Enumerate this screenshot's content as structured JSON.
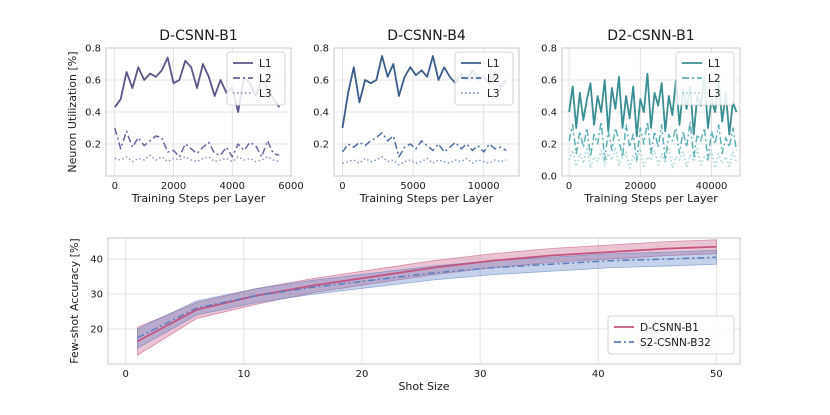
{
  "chart_data": [
    {
      "type": "line",
      "title": "D-CSNN-B1",
      "xlabel": "Training Steps per Layer",
      "ylabel": "Neuron Utilization [%]",
      "xlim": [
        -300,
        6000
      ],
      "ylim": [
        0.0,
        0.8
      ],
      "xticks": [
        0,
        2000,
        4000,
        6000
      ],
      "xtick_labels": [
        "0",
        "2000",
        "4000",
        "6000"
      ],
      "yticks": [
        0.2,
        0.4,
        0.6,
        0.8
      ],
      "ytick_labels": [
        "0.2",
        "0.4",
        "0.6",
        "0.8"
      ],
      "legend": "top-right",
      "series": [
        {
          "name": "L1",
          "style": "solid",
          "color": "#5b5589",
          "x": [
            0,
            200,
            400,
            600,
            800,
            1000,
            1200,
            1400,
            1600,
            1800,
            2000,
            2200,
            2400,
            2600,
            2800,
            3000,
            3200,
            3400,
            3600,
            3800,
            4000,
            4200,
            4400,
            4600,
            4800,
            5000,
            5200,
            5400,
            5600
          ],
          "values": [
            0.43,
            0.48,
            0.65,
            0.55,
            0.68,
            0.6,
            0.64,
            0.62,
            0.66,
            0.74,
            0.58,
            0.6,
            0.72,
            0.68,
            0.55,
            0.7,
            0.62,
            0.5,
            0.6,
            0.52,
            0.55,
            0.4,
            0.62,
            0.58,
            0.5,
            0.6,
            0.55,
            0.48,
            0.43
          ]
        },
        {
          "name": "L2",
          "style": "dashdot",
          "color": "#6a63a0",
          "x": [
            0,
            200,
            400,
            600,
            800,
            1000,
            1200,
            1400,
            1600,
            1800,
            2000,
            2200,
            2400,
            2600,
            2800,
            3000,
            3200,
            3400,
            3600,
            3800,
            4000,
            4200,
            4400,
            4600,
            4800,
            5000,
            5200,
            5400,
            5600
          ],
          "values": [
            0.3,
            0.17,
            0.28,
            0.18,
            0.24,
            0.19,
            0.22,
            0.25,
            0.24,
            0.15,
            0.16,
            0.12,
            0.2,
            0.17,
            0.14,
            0.18,
            0.21,
            0.14,
            0.13,
            0.18,
            0.12,
            0.2,
            0.16,
            0.21,
            0.19,
            0.12,
            0.22,
            0.14,
            0.13
          ]
        },
        {
          "name": "L3",
          "style": "dotted",
          "color": "#9590c2",
          "x": [
            0,
            200,
            400,
            600,
            800,
            1000,
            1200,
            1400,
            1600,
            1800,
            2000,
            2200,
            2400,
            2600,
            2800,
            3000,
            3200,
            3400,
            3600,
            3800,
            4000,
            4200,
            4400,
            4600,
            4800,
            5000,
            5200,
            5400,
            5600
          ],
          "values": [
            0.11,
            0.1,
            0.12,
            0.09,
            0.11,
            0.1,
            0.13,
            0.1,
            0.12,
            0.09,
            0.11,
            0.1,
            0.12,
            0.1,
            0.09,
            0.11,
            0.12,
            0.09,
            0.1,
            0.11,
            0.09,
            0.12,
            0.1,
            0.11,
            0.09,
            0.1,
            0.12,
            0.1,
            0.09
          ]
        }
      ]
    },
    {
      "type": "line",
      "title": "D-CSNN-B4",
      "xlabel": "Training Steps per Layer",
      "ylabel": "",
      "xlim": [
        -600,
        12500
      ],
      "ylim": [
        0.0,
        0.8
      ],
      "xticks": [
        0,
        5000,
        10000
      ],
      "xtick_labels": [
        "0",
        "5000",
        "10000"
      ],
      "yticks": [
        0.2,
        0.4,
        0.6,
        0.8
      ],
      "ytick_labels": [
        "0.2",
        "0.4",
        "0.6",
        "0.8"
      ],
      "legend": "top-right",
      "series": [
        {
          "name": "L1",
          "style": "solid",
          "color": "#3c5d8c",
          "x": [
            0,
            400,
            800,
            1200,
            1600,
            2000,
            2400,
            2800,
            3200,
            3600,
            4000,
            4400,
            4800,
            5200,
            5600,
            6000,
            6400,
            6800,
            7200,
            7600,
            8000,
            8400,
            8800,
            9200,
            9600,
            10000,
            10400,
            10800,
            11200,
            11600
          ],
          "values": [
            0.3,
            0.52,
            0.68,
            0.46,
            0.6,
            0.58,
            0.6,
            0.75,
            0.62,
            0.7,
            0.5,
            0.62,
            0.68,
            0.63,
            0.66,
            0.62,
            0.75,
            0.6,
            0.68,
            0.62,
            0.58,
            0.64,
            0.6,
            0.66,
            0.6,
            0.62,
            0.58,
            0.65,
            0.55,
            0.6
          ]
        },
        {
          "name": "L2",
          "style": "dashdot",
          "color": "#4b6d9e",
          "x": [
            0,
            400,
            800,
            1200,
            1600,
            2000,
            2400,
            2800,
            3200,
            3600,
            4000,
            4400,
            4800,
            5200,
            5600,
            6000,
            6400,
            6800,
            7200,
            7600,
            8000,
            8400,
            8800,
            9200,
            9600,
            10000,
            10400,
            10800,
            11200,
            11600
          ],
          "values": [
            0.15,
            0.2,
            0.18,
            0.21,
            0.19,
            0.22,
            0.24,
            0.27,
            0.22,
            0.25,
            0.12,
            0.18,
            0.2,
            0.17,
            0.22,
            0.19,
            0.16,
            0.2,
            0.15,
            0.18,
            0.21,
            0.17,
            0.2,
            0.16,
            0.19,
            0.15,
            0.2,
            0.17,
            0.18,
            0.16
          ]
        },
        {
          "name": "L3",
          "style": "dotted",
          "color": "#7a97c2",
          "x": [
            0,
            400,
            800,
            1200,
            1600,
            2000,
            2400,
            2800,
            3200,
            3600,
            4000,
            4400,
            4800,
            5200,
            5600,
            6000,
            6400,
            6800,
            7200,
            7600,
            8000,
            8400,
            8800,
            9200,
            9600,
            10000,
            10400,
            10800,
            11200,
            11600
          ],
          "values": [
            0.08,
            0.09,
            0.1,
            0.08,
            0.11,
            0.09,
            0.1,
            0.12,
            0.09,
            0.1,
            0.07,
            0.09,
            0.1,
            0.08,
            0.09,
            0.11,
            0.08,
            0.1,
            0.09,
            0.08,
            0.1,
            0.09,
            0.11,
            0.08,
            0.1,
            0.09,
            0.08,
            0.1,
            0.09,
            0.1
          ]
        }
      ]
    },
    {
      "type": "line",
      "title": "D2-CSNN-B1",
      "xlabel": "Training Steps per Layer",
      "ylabel": "",
      "xlim": [
        -2000,
        48000
      ],
      "ylim": [
        0.0,
        0.8
      ],
      "xticks": [
        0,
        20000,
        40000
      ],
      "xtick_labels": [
        "0",
        "20000",
        "40000"
      ],
      "yticks": [
        0.0,
        0.2,
        0.4,
        0.6,
        0.8
      ],
      "ytick_labels": [
        "0.0",
        "0.2",
        "0.4",
        "0.6",
        "0.8"
      ],
      "legend": "top-right",
      "series": [
        {
          "name": "L1",
          "style": "solid",
          "color": "#3a8f93",
          "x": [
            0,
            1000,
            2000,
            3000,
            4000,
            5000,
            6000,
            7000,
            8000,
            9000,
            10000,
            11000,
            12000,
            13000,
            14000,
            15000,
            16000,
            17000,
            18000,
            19000,
            20000,
            21000,
            22000,
            23000,
            24000,
            25000,
            26000,
            27000,
            28000,
            29000,
            30000,
            31000,
            32000,
            33000,
            34000,
            35000,
            36000,
            37000,
            38000,
            39000,
            40000,
            41000,
            42000,
            43000,
            44000,
            45000,
            46000,
            47000
          ],
          "values": [
            0.4,
            0.56,
            0.3,
            0.52,
            0.35,
            0.48,
            0.58,
            0.32,
            0.5,
            0.4,
            0.6,
            0.28,
            0.55,
            0.42,
            0.62,
            0.3,
            0.5,
            0.36,
            0.56,
            0.25,
            0.48,
            0.4,
            0.64,
            0.3,
            0.52,
            0.44,
            0.58,
            0.28,
            0.5,
            0.38,
            0.6,
            0.32,
            0.54,
            0.42,
            0.56,
            0.26,
            0.5,
            0.44,
            0.62,
            0.3,
            0.48,
            0.4,
            0.6,
            0.34,
            0.52,
            0.26,
            0.46,
            0.4
          ]
        },
        {
          "name": "L2",
          "style": "dashdot",
          "color": "#5fb0b5",
          "x": [
            0,
            1000,
            2000,
            3000,
            4000,
            5000,
            6000,
            7000,
            8000,
            9000,
            10000,
            11000,
            12000,
            13000,
            14000,
            15000,
            16000,
            17000,
            18000,
            19000,
            20000,
            21000,
            22000,
            23000,
            24000,
            25000,
            26000,
            27000,
            28000,
            29000,
            30000,
            31000,
            32000,
            33000,
            34000,
            35000,
            36000,
            37000,
            38000,
            39000,
            40000,
            41000,
            42000,
            43000,
            44000,
            45000,
            46000,
            47000
          ],
          "values": [
            0.22,
            0.32,
            0.14,
            0.28,
            0.18,
            0.3,
            0.12,
            0.26,
            0.2,
            0.34,
            0.1,
            0.28,
            0.16,
            0.3,
            0.22,
            0.12,
            0.32,
            0.18,
            0.26,
            0.1,
            0.3,
            0.2,
            0.34,
            0.14,
            0.28,
            0.18,
            0.32,
            0.1,
            0.26,
            0.22,
            0.3,
            0.14,
            0.28,
            0.18,
            0.34,
            0.12,
            0.26,
            0.22,
            0.3,
            0.1,
            0.28,
            0.2,
            0.32,
            0.14,
            0.24,
            0.18,
            0.3,
            0.16
          ]
        },
        {
          "name": "L3",
          "style": "dotted",
          "color": "#9fd3d6",
          "x": [
            0,
            1000,
            2000,
            3000,
            4000,
            5000,
            6000,
            7000,
            8000,
            9000,
            10000,
            11000,
            12000,
            13000,
            14000,
            15000,
            16000,
            17000,
            18000,
            19000,
            20000,
            21000,
            22000,
            23000,
            24000,
            25000,
            26000,
            27000,
            28000,
            29000,
            30000,
            31000,
            32000,
            33000,
            34000,
            35000,
            36000,
            37000,
            38000,
            39000,
            40000,
            41000,
            42000,
            43000,
            44000,
            45000,
            46000,
            47000
          ],
          "values": [
            0.1,
            0.16,
            0.06,
            0.14,
            0.08,
            0.18,
            0.05,
            0.12,
            0.09,
            0.16,
            0.06,
            0.14,
            0.1,
            0.18,
            0.07,
            0.12,
            0.15,
            0.05,
            0.13,
            0.09,
            0.17,
            0.06,
            0.12,
            0.1,
            0.16,
            0.07,
            0.14,
            0.08,
            0.18,
            0.05,
            0.12,
            0.1,
            0.15,
            0.06,
            0.13,
            0.09,
            0.17,
            0.07,
            0.12,
            0.1,
            0.16,
            0.05,
            0.14,
            0.08,
            0.12,
            0.06,
            0.15,
            0.09
          ]
        }
      ]
    },
    {
      "type": "line",
      "title": "",
      "xlabel": "Shot Size",
      "ylabel": "Few-shot Accuracy [%]",
      "xlim": [
        -1.5,
        52
      ],
      "ylim": [
        10,
        46
      ],
      "xticks": [
        0,
        10,
        20,
        30,
        40,
        50
      ],
      "xtick_labels": [
        "0",
        "10",
        "20",
        "30",
        "40",
        "50"
      ],
      "yticks": [
        20,
        30,
        40
      ],
      "ytick_labels": [
        "20",
        "30",
        "40"
      ],
      "legend": "bottom-right",
      "series": [
        {
          "name": "D-CSNN-B1",
          "style": "solid",
          "color": "#c2557f",
          "band_color": "#c2557f",
          "x": [
            1,
            6,
            11,
            16,
            21,
            26,
            31,
            36,
            41,
            46,
            50
          ],
          "values": [
            16.5,
            25.5,
            29.5,
            32.5,
            35.0,
            37.5,
            39.5,
            41.0,
            42.0,
            43.0,
            43.5
          ],
          "lower": [
            12.5,
            23.0,
            27.0,
            30.5,
            33.0,
            35.5,
            37.5,
            39.0,
            40.0,
            41.0,
            41.5
          ],
          "upper": [
            20.5,
            27.5,
            31.5,
            34.5,
            37.0,
            39.5,
            41.5,
            43.0,
            44.0,
            45.0,
            45.5
          ]
        },
        {
          "name": "S2-CSNN-B32",
          "style": "dashdot",
          "color": "#5b7fc0",
          "band_color": "#5b7fc0",
          "x": [
            1,
            6,
            11,
            16,
            21,
            26,
            31,
            36,
            41,
            46,
            50
          ],
          "values": [
            17.5,
            26.0,
            29.5,
            32.0,
            34.0,
            36.0,
            37.5,
            38.5,
            39.5,
            40.0,
            40.5
          ],
          "lower": [
            14.5,
            24.0,
            27.5,
            30.0,
            32.0,
            34.0,
            35.5,
            36.5,
            37.5,
            38.0,
            38.5
          ],
          "upper": [
            20.0,
            28.0,
            31.5,
            34.0,
            36.0,
            38.0,
            39.5,
            40.5,
            41.5,
            42.0,
            42.5
          ]
        }
      ]
    }
  ]
}
